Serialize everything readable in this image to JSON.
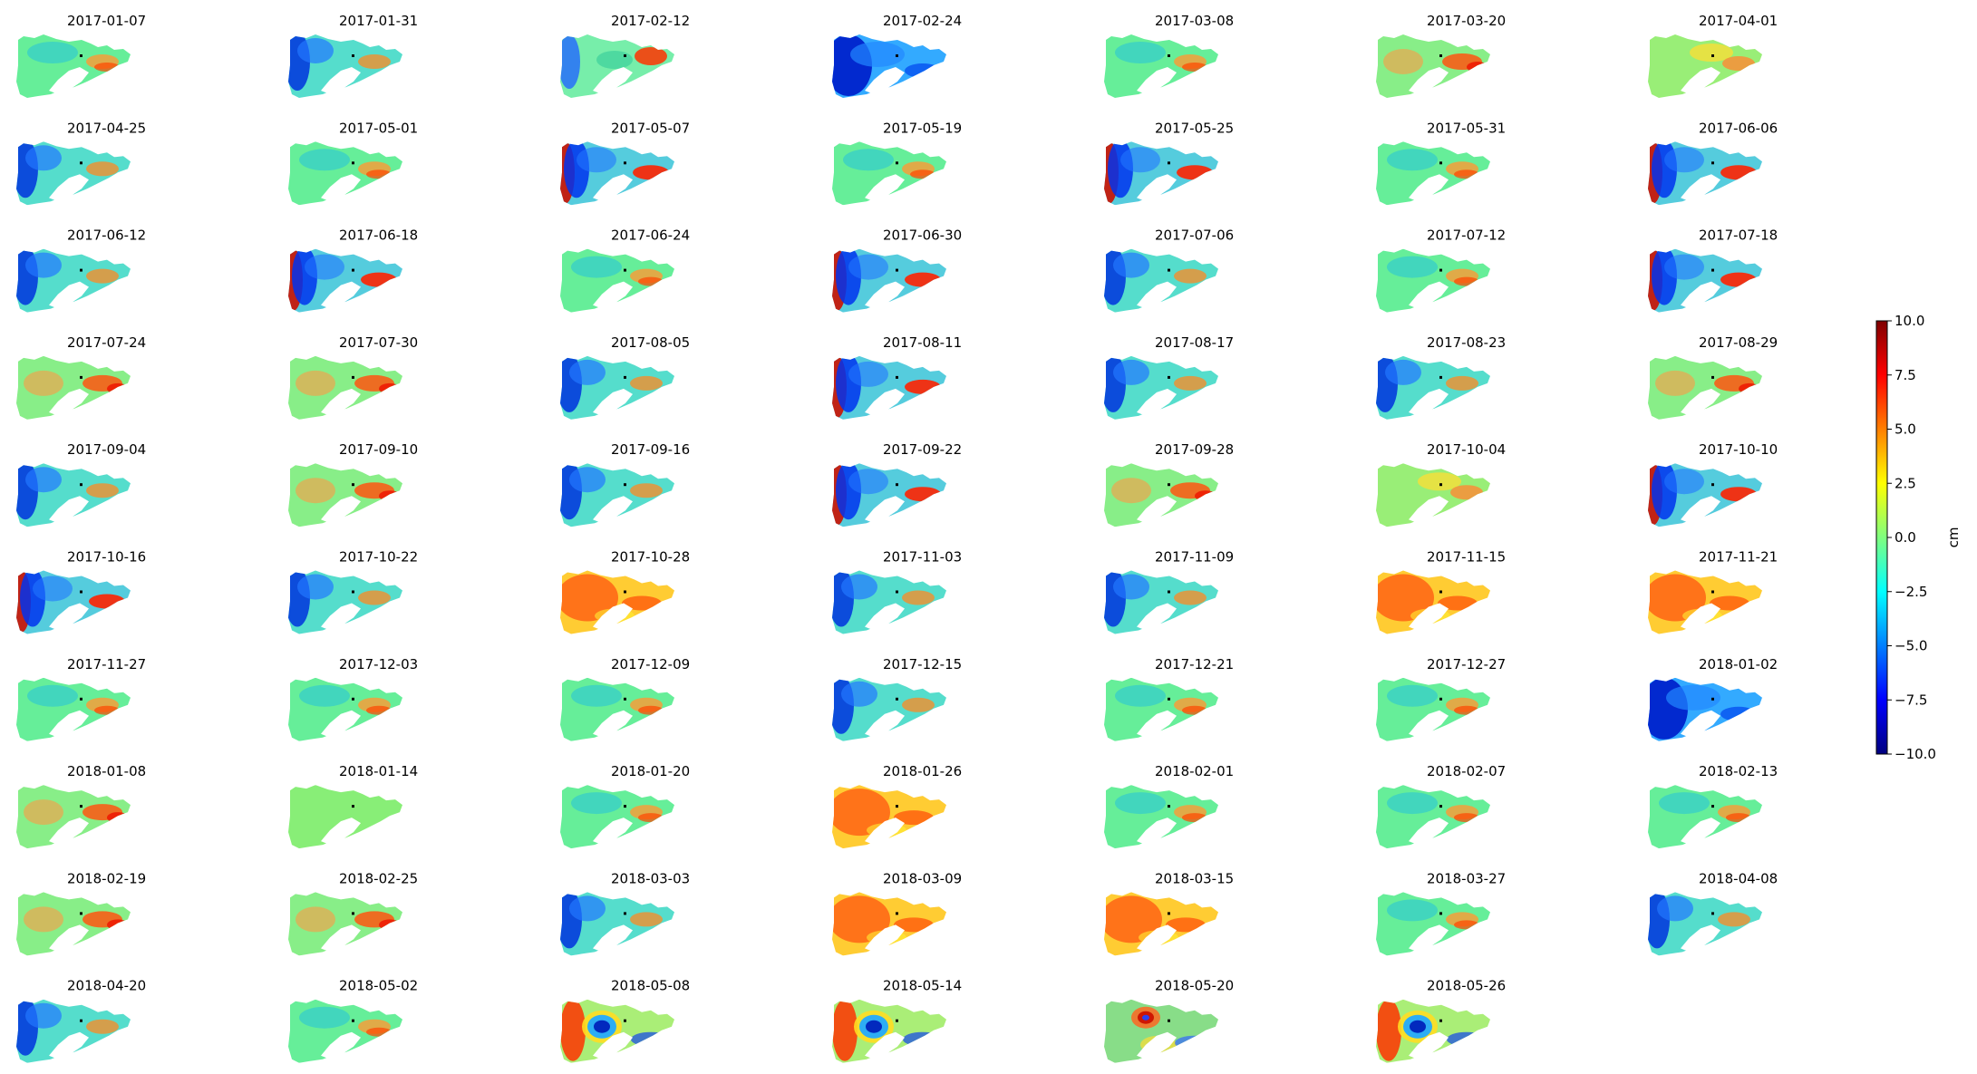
{
  "chart_data": {
    "type": "heatmap",
    "layout": {
      "rows": 10,
      "cols": 7
    },
    "panel_titles": [
      "2017-01-07",
      "2017-01-31",
      "2017-02-12",
      "2017-02-24",
      "2017-03-08",
      "2017-03-20",
      "2017-04-01",
      "2017-04-25",
      "2017-05-01",
      "2017-05-07",
      "2017-05-19",
      "2017-05-25",
      "2017-05-31",
      "2017-06-06",
      "2017-06-12",
      "2017-06-18",
      "2017-06-24",
      "2017-06-30",
      "2017-07-06",
      "2017-07-12",
      "2017-07-18",
      "2017-07-24",
      "2017-07-30",
      "2017-08-05",
      "2017-08-11",
      "2017-08-17",
      "2017-08-23",
      "2017-08-29",
      "2017-09-04",
      "2017-09-10",
      "2017-09-16",
      "2017-09-22",
      "2017-09-28",
      "2017-10-04",
      "2017-10-10",
      "2017-10-16",
      "2017-10-22",
      "2017-10-28",
      "2017-11-03",
      "2017-11-09",
      "2017-11-15",
      "2017-11-21",
      "2017-11-27",
      "2017-12-03",
      "2017-12-09",
      "2017-12-15",
      "2017-12-21",
      "2017-12-27",
      "2018-01-02",
      "2018-01-08",
      "2018-01-14",
      "2018-01-20",
      "2018-01-26",
      "2018-02-01",
      "2018-02-07",
      "2018-02-13",
      "2018-02-19",
      "2018-02-25",
      "2018-03-03",
      "2018-03-09",
      "2018-03-15",
      "2018-03-27",
      "2018-04-08",
      "2018-04-20",
      "2018-05-02",
      "2018-05-08",
      "2018-05-14",
      "2018-05-20",
      "2018-05-26"
    ],
    "panel_patterns": [
      "M",
      "W",
      "MW",
      "SW",
      "M",
      "E",
      "ME",
      "W",
      "M",
      "WE",
      "M",
      "WE",
      "M",
      "WE",
      "W",
      "WE",
      "M",
      "WE",
      "W",
      "M",
      "WE",
      "E",
      "E",
      "W",
      "WE",
      "W",
      "W",
      "E",
      "W",
      "E",
      "W",
      "WE",
      "E",
      "ME",
      "WE",
      "WE",
      "W",
      "H",
      "W",
      "W",
      "H",
      "H",
      "M",
      "M",
      "M",
      "W",
      "M",
      "M",
      "SW",
      "E",
      "FLAT",
      "M",
      "H",
      "M",
      "M",
      "M",
      "E",
      "E",
      "W",
      "H",
      "H",
      "M",
      "W",
      "W",
      "M",
      "RING",
      "RING",
      "RING2",
      "RING"
    ],
    "colorbar": {
      "label": "cm",
      "range": [
        -10,
        10
      ],
      "ticks": [
        -10.0,
        -7.5,
        -5.0,
        -2.5,
        0.0,
        2.5,
        5.0,
        7.5,
        10.0
      ],
      "tick_labels": [
        "−10.0",
        "−7.5",
        "−5.0",
        "−2.5",
        "0.0",
        "2.5",
        "5.0",
        "7.5",
        "10.0"
      ],
      "colormap": "jet",
      "colormap_stops": [
        "#00007f",
        "#0000ff",
        "#007fff",
        "#00ffff",
        "#7fff7f",
        "#ffff00",
        "#ff7f00",
        "#ff0000",
        "#7f0000"
      ]
    },
    "grid": false
  }
}
